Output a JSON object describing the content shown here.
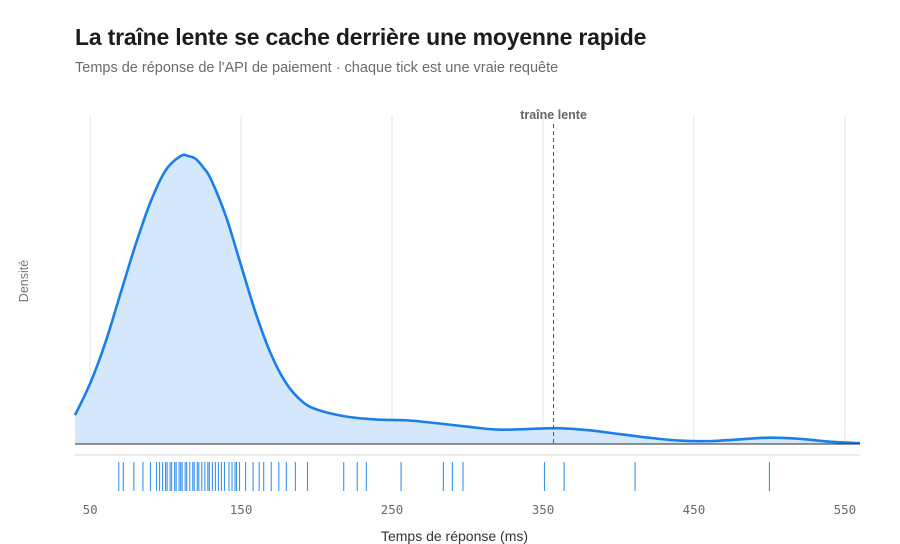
{
  "title": "La traîne lente se cache derrière une moyenne rapide",
  "subtitle": "Temps de réponse de l'API de paiement · chaque tick est une vraie requête",
  "colors": {
    "line": "#1a7fe8",
    "fill": "#d4e7fb",
    "rug": "#1a7fe8",
    "grid": "#e6e6e6",
    "annotation": "#555555"
  },
  "chart_data": {
    "type": "area",
    "xlabel": "Temps de réponse (ms)",
    "ylabel": "Densité",
    "xlim": [
      40,
      560
    ],
    "ylim": [
      0,
      1
    ],
    "x_ticks": [
      50,
      150,
      250,
      350,
      450,
      550
    ],
    "x_tick_labels": [
      "50",
      "150",
      "250",
      "350",
      "450",
      "550"
    ],
    "grid": "vertical",
    "density": {
      "x": [
        40,
        50,
        60,
        70,
        80,
        90,
        100,
        110,
        115,
        120,
        125,
        130,
        140,
        150,
        160,
        170,
        180,
        190,
        200,
        220,
        240,
        260,
        280,
        300,
        320,
        340,
        360,
        380,
        400,
        420,
        440,
        460,
        480,
        500,
        520,
        540,
        560
      ],
      "y": [
        0.1,
        0.21,
        0.35,
        0.52,
        0.69,
        0.84,
        0.95,
        1.0,
        1.0,
        0.99,
        0.96,
        0.92,
        0.79,
        0.62,
        0.45,
        0.31,
        0.21,
        0.15,
        0.12,
        0.095,
        0.085,
        0.082,
        0.072,
        0.06,
        0.05,
        0.052,
        0.055,
        0.048,
        0.035,
        0.022,
        0.012,
        0.01,
        0.016,
        0.022,
        0.018,
        0.008,
        0.003
      ]
    },
    "rug": [
      69,
      72,
      79,
      85,
      90,
      94,
      96,
      98,
      100,
      101,
      103,
      104,
      106,
      107,
      109,
      110,
      111,
      113,
      114,
      116,
      118,
      119,
      121,
      122,
      124,
      126,
      128,
      129,
      131,
      133,
      135,
      137,
      139,
      142,
      144,
      146,
      147,
      149,
      153,
      158,
      162,
      165,
      170,
      175,
      180,
      186,
      194,
      218,
      227,
      233,
      256,
      284,
      290,
      297,
      351,
      364,
      411,
      500
    ],
    "annotations": [
      {
        "x": 357,
        "label": "traîne lente",
        "style": "dashed-vertical"
      }
    ]
  }
}
